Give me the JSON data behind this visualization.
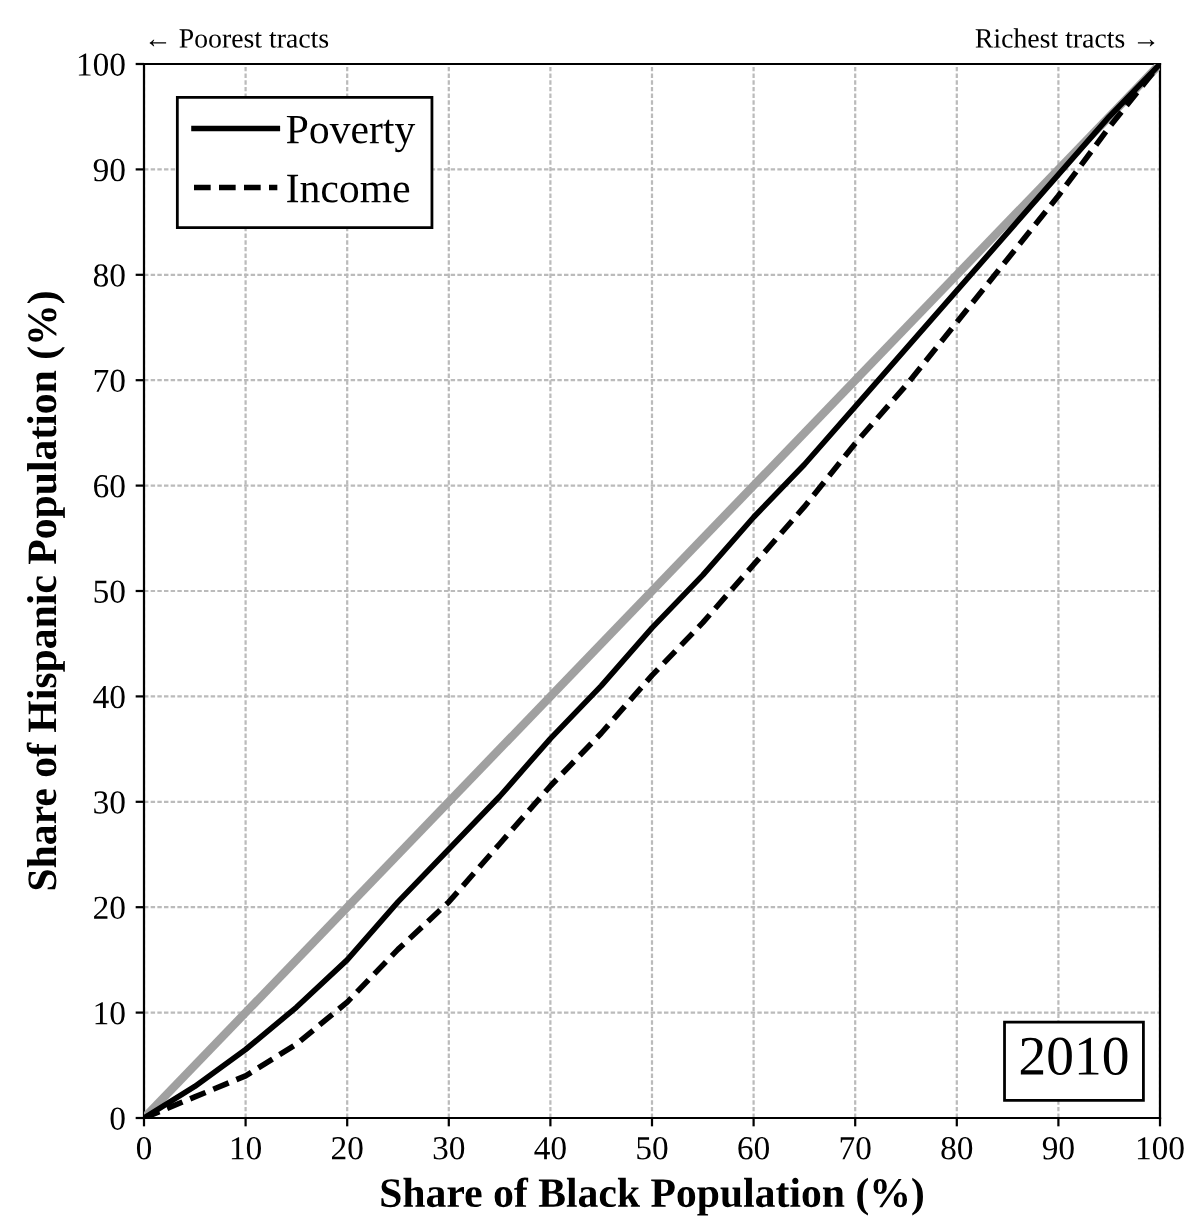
{
  "chart_data": {
    "type": "line",
    "xlabel": "Share of Black Population (%)",
    "ylabel": "Share of Hispanic Population (%)",
    "annotations": [
      "← Poorest tracts",
      "Richest tracts →",
      "2010"
    ],
    "series": [
      {
        "color": "#a0a0a0",
        "line_style": "solid",
        "x": [
          0,
          100
        ],
        "values": [
          0,
          100
        ]
      },
      {
        "name": "Poverty",
        "color": "#000000",
        "line_style": "solid",
        "x": [
          0,
          5,
          10,
          15,
          20,
          25,
          30,
          35,
          40,
          45,
          50,
          55,
          60,
          65,
          70,
          75,
          80,
          85,
          90,
          95,
          100
        ],
        "values": [
          0,
          3,
          6.5,
          10.5,
          15,
          20.5,
          25.5,
          30.5,
          36,
          41,
          46.5,
          51.5,
          57,
          62,
          67.5,
          73,
          78.5,
          84,
          89.5,
          95,
          100
        ]
      },
      {
        "name": "Income",
        "color": "#000000",
        "line_style": "dashed",
        "x": [
          0,
          5,
          10,
          15,
          20,
          25,
          30,
          35,
          40,
          45,
          50,
          55,
          60,
          65,
          70,
          75,
          80,
          85,
          90,
          95,
          100
        ],
        "values": [
          0,
          2,
          4,
          7,
          11,
          16,
          20.5,
          26,
          31.5,
          36.5,
          42,
          47,
          52.5,
          58,
          64,
          69.5,
          75.5,
          81.5,
          87.5,
          94,
          100
        ]
      }
    ],
    "xlim": [
      0,
      100
    ],
    "ylim": [
      0,
      100
    ],
    "xticks": [
      0,
      10,
      20,
      30,
      40,
      50,
      60,
      70,
      80,
      90,
      100
    ],
    "yticks": [
      0,
      10,
      20,
      30,
      40,
      50,
      60,
      70,
      80,
      90,
      100
    ],
    "grid": true,
    "legend": "top left",
    "marker": "none"
  }
}
